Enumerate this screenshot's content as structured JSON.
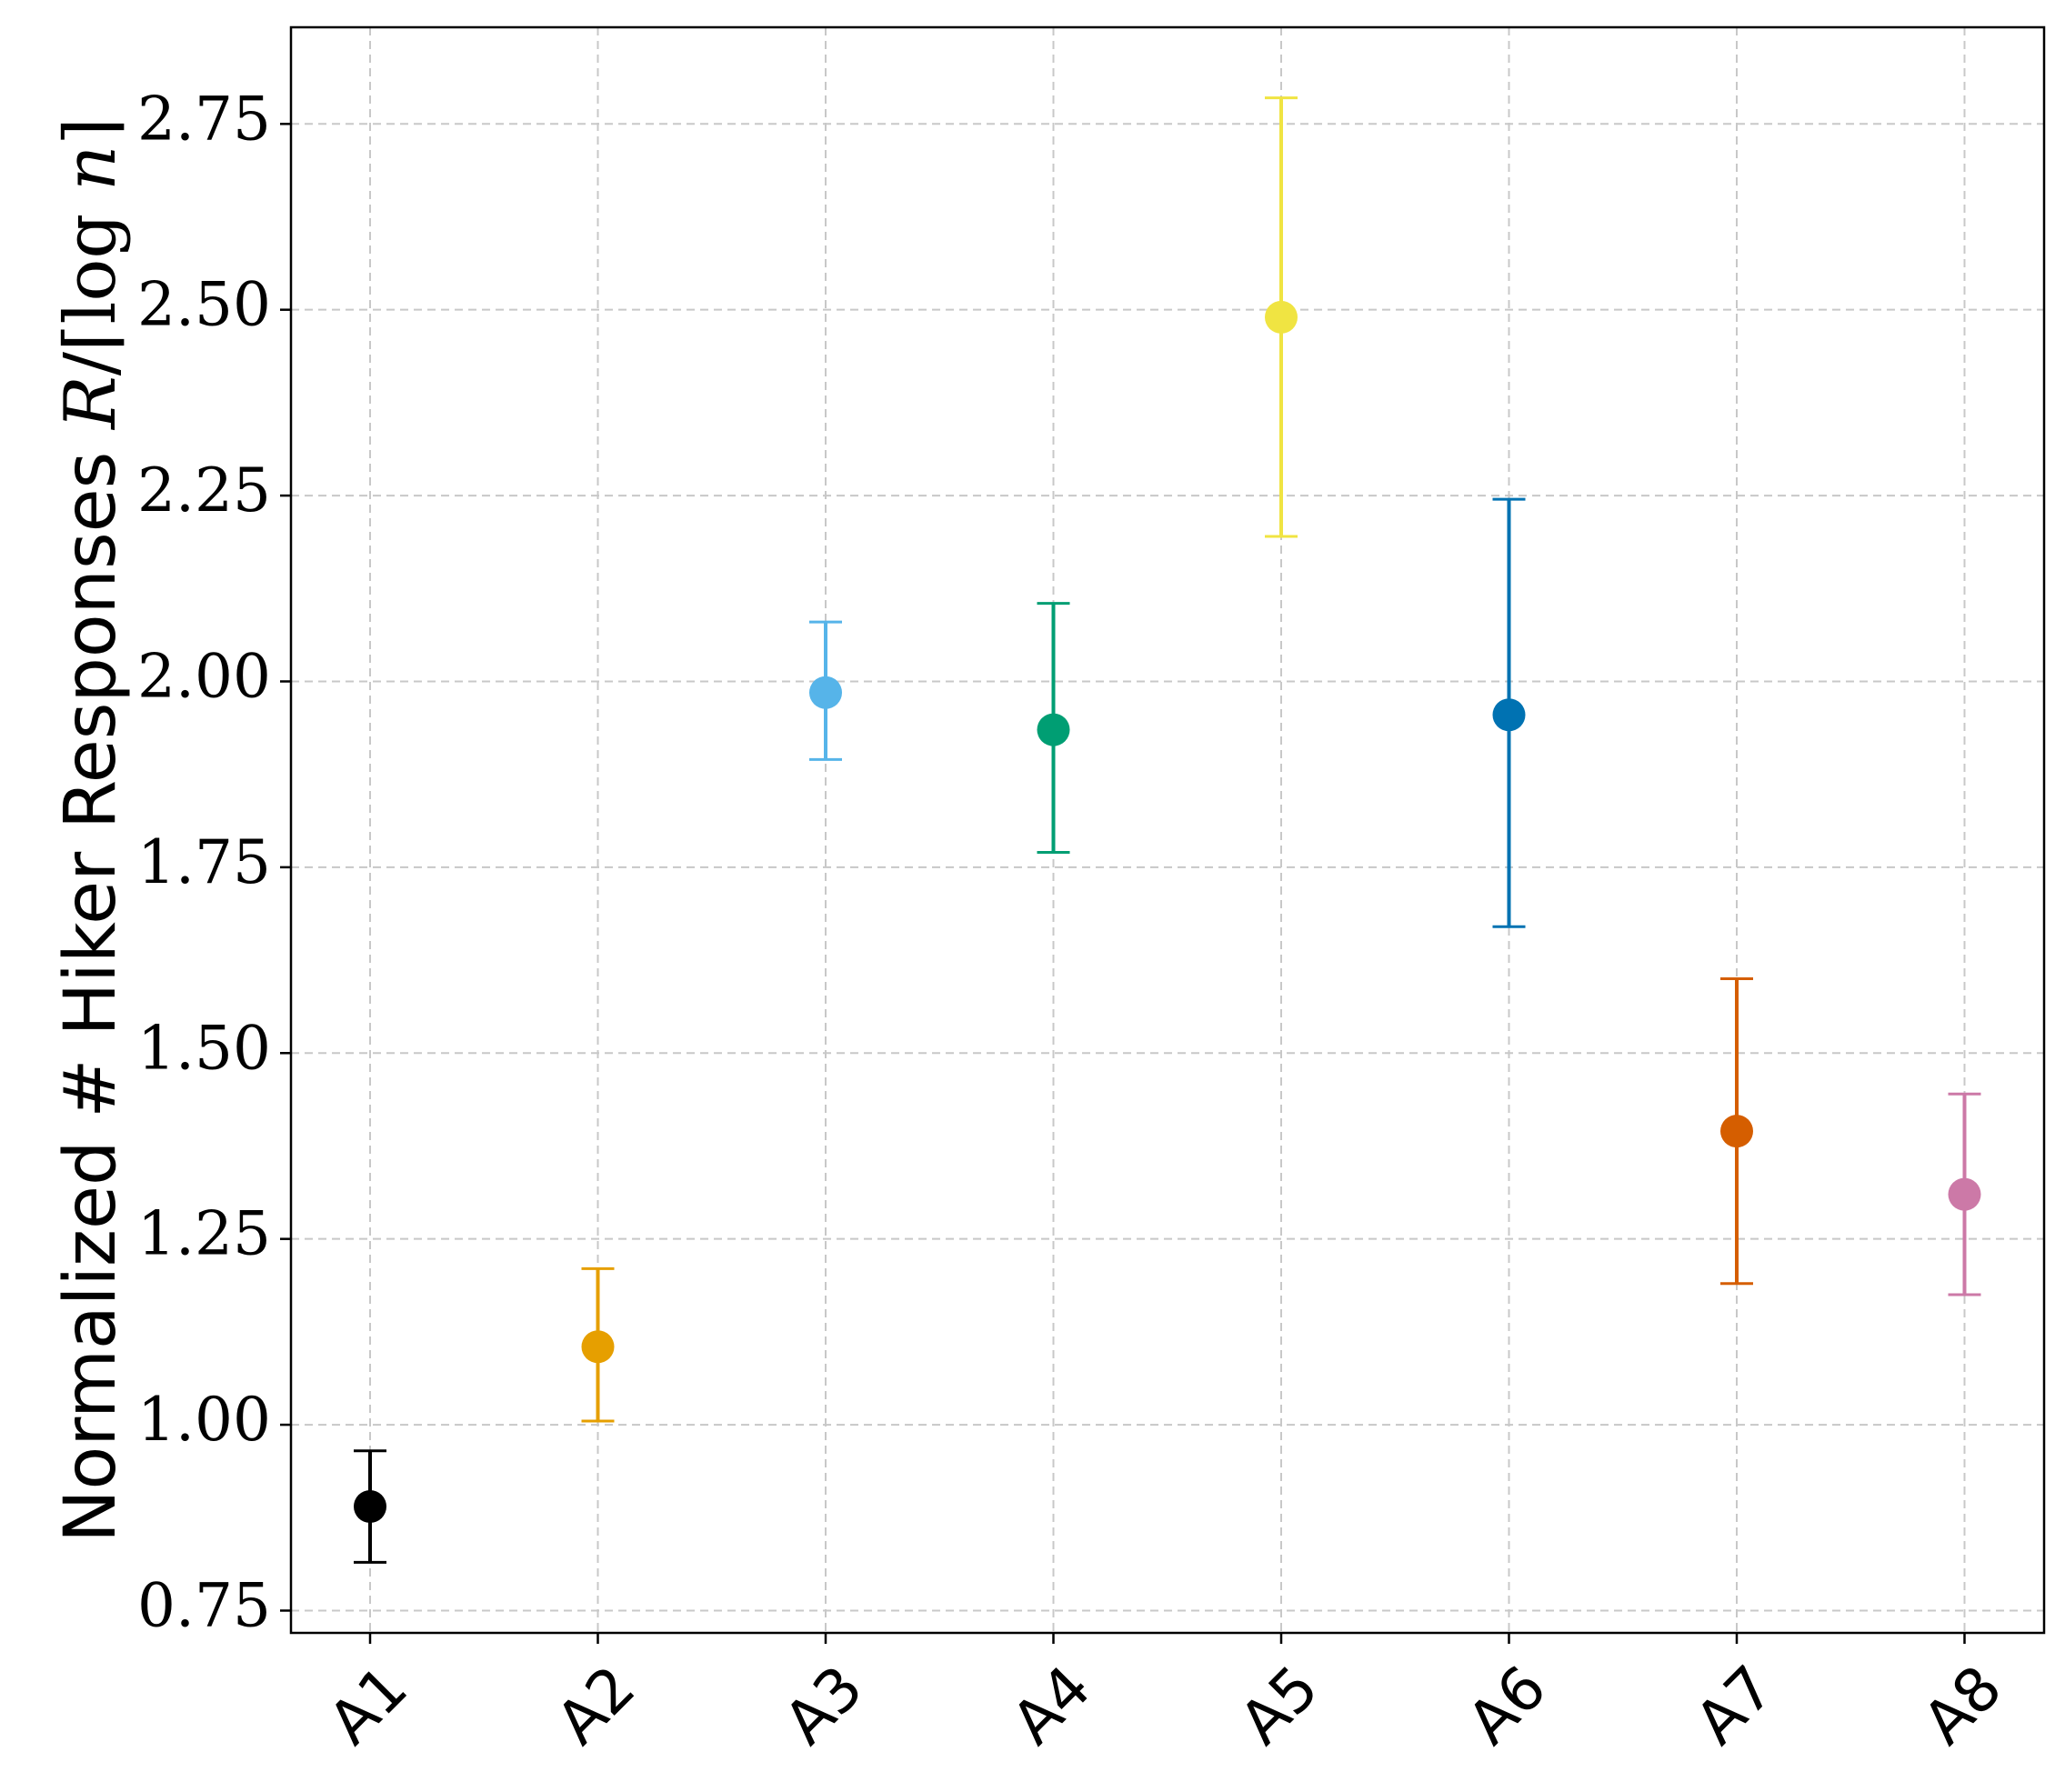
{
  "chart_data": {
    "type": "scatter",
    "title": "",
    "xlabel": "",
    "ylabel": {
      "prefix": "Normalized # Hiker Responses ",
      "math_var": "R",
      "math_slash": "/⌈log ",
      "math_n": "n",
      "math_close": "⌉"
    },
    "categories": [
      "A1",
      "A2",
      "A3",
      "A4",
      "A5",
      "A6",
      "A7",
      "A8"
    ],
    "values": [
      0.89,
      1.105,
      1.985,
      1.935,
      2.49,
      1.955,
      1.395,
      1.31
    ],
    "err_low": [
      0.815,
      1.005,
      1.895,
      1.77,
      2.195,
      1.67,
      1.19,
      1.175
    ],
    "err_high": [
      0.965,
      1.21,
      2.08,
      2.105,
      2.785,
      2.245,
      1.6,
      1.445
    ],
    "colors": [
      "#000000",
      "#E69F00",
      "#56B4E9",
      "#009E73",
      "#F0E442",
      "#0072B2",
      "#D55E00",
      "#CC79A7"
    ],
    "ylim": [
      0.72,
      2.88
    ],
    "yticks": [
      0.75,
      1.0,
      1.25,
      1.5,
      1.75,
      2.0,
      2.25,
      2.5,
      2.75
    ],
    "ytick_labels": [
      "0.75",
      "1.00",
      "1.25",
      "1.50",
      "1.75",
      "2.00",
      "2.25",
      "2.50",
      "2.75"
    ],
    "grid": true,
    "grid_style": "dashed"
  }
}
